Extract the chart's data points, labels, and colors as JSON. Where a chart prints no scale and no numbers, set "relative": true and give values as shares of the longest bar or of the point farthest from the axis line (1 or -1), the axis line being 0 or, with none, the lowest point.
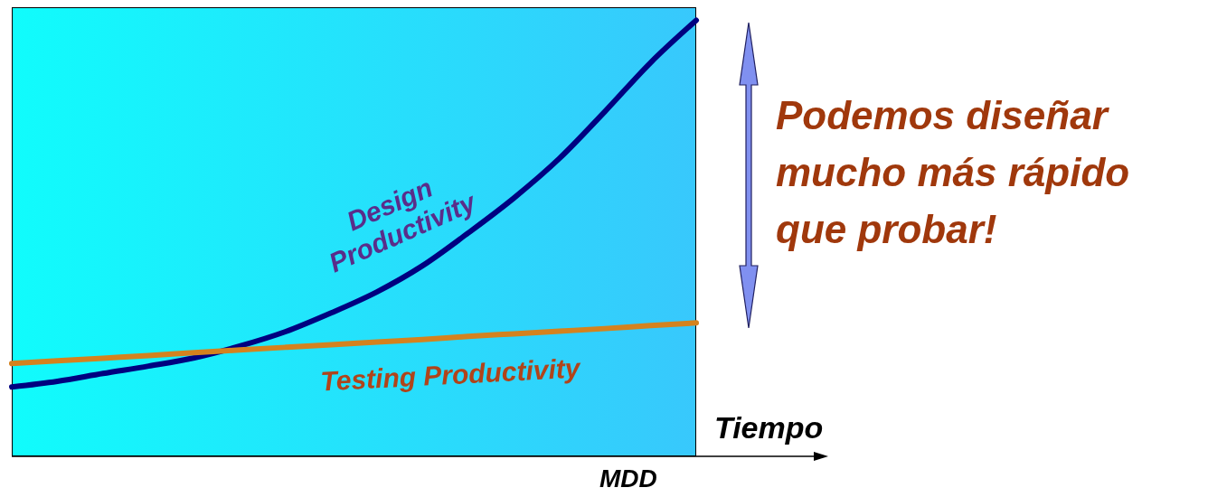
{
  "chart_data": {
    "type": "line",
    "relative": true,
    "xlabel": "Tiempo",
    "categories": [
      null,
      null,
      null,
      null,
      null,
      null,
      null,
      null,
      null,
      null,
      null,
      null,
      null,
      null,
      null,
      null
    ],
    "series": [
      {
        "name": "Design Productivity",
        "color": "#000080",
        "values": [
          0.159,
          0.172,
          0.19,
          0.207,
          0.226,
          0.253,
          0.286,
          0.329,
          0.377,
          0.437,
          0.512,
          0.592,
          0.683,
          0.791,
          0.903,
          1
        ]
      },
      {
        "name": "Testing Productivity",
        "color": "#d4821e",
        "values": [
          0.213,
          0.219,
          0.225,
          0.231,
          0.238,
          0.244,
          0.25,
          0.256,
          0.262,
          0.268,
          0.275,
          0.281,
          0.287,
          0.293,
          0.3,
          0.306
        ]
      }
    ],
    "annotations": [
      "MDD",
      "Podemos diseñar mucho más rápido que probar!"
    ],
    "marker": "none",
    "line_style": "solid",
    "grid": false
  }
}
